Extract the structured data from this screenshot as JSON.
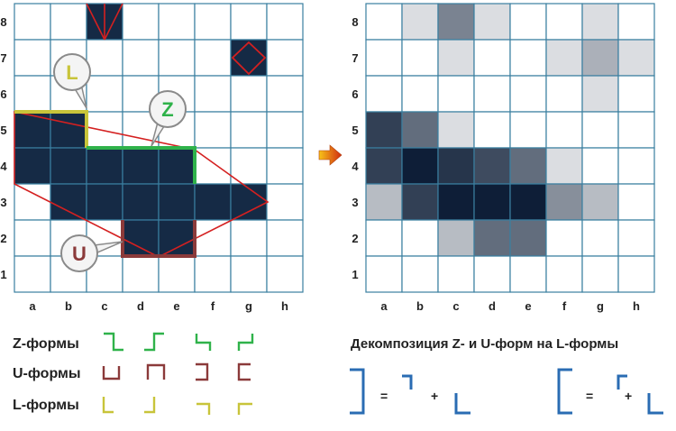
{
  "left_grid": {
    "cols": [
      "a",
      "b",
      "c",
      "d",
      "e",
      "f",
      "g",
      "h"
    ],
    "rows": [
      "8",
      "7",
      "6",
      "5",
      "4",
      "3",
      "2",
      "1"
    ],
    "filled": [
      "c8",
      "g7",
      "a5",
      "b5",
      "a4",
      "b4",
      "c4",
      "d4",
      "e4",
      "b3",
      "c3",
      "d3",
      "e3",
      "f3",
      "g3",
      "d2",
      "e2"
    ],
    "fill_color": "#152a45",
    "callouts": [
      {
        "id": "L",
        "text": "L",
        "color": "#c8c43a"
      },
      {
        "id": "Z",
        "text": "Z",
        "color": "#2fb24a"
      },
      {
        "id": "U",
        "text": "U",
        "color": "#8b3a3a"
      }
    ]
  },
  "right_grid": {
    "cols": [
      "a",
      "b",
      "c",
      "d",
      "e",
      "f",
      "g",
      "h"
    ],
    "rows": [
      "8",
      "7",
      "6",
      "5",
      "4",
      "3",
      "2",
      "1"
    ],
    "cells": {
      "b8": 0.15,
      "c8": 0.55,
      "d8": 0.15,
      "g8": 0.15,
      "c7": 0.15,
      "f7": 0.15,
      "g7": 0.35,
      "h7": 0.15,
      "g6": 0.15,
      "a5": 0.85,
      "b5": 0.65,
      "c5": 0.15,
      "a4": 0.85,
      "b4": 1.0,
      "c4": 0.9,
      "d4": 0.8,
      "e4": 0.65,
      "f4": 0.15,
      "a3": 0.3,
      "b3": 0.85,
      "c3": 1.0,
      "d3": 1.0,
      "e3": 1.0,
      "f3": 0.5,
      "g3": 0.3,
      "c2": 0.3,
      "d2": 0.65,
      "e2": 0.65
    }
  },
  "arrow_colors": [
    "#f7c318",
    "#d02a10"
  ],
  "legend": {
    "z_label": "Z-формы",
    "u_label": "U-формы",
    "l_label": "L-формы",
    "z_color": "#2fb24a",
    "u_color": "#8b3a3a",
    "l_color": "#c8c43a"
  },
  "decomposition": {
    "title": "Декомпозиция Z- и U-форм на L-формы",
    "equals": "=",
    "plus": "+",
    "color": "#2a6cb3"
  }
}
